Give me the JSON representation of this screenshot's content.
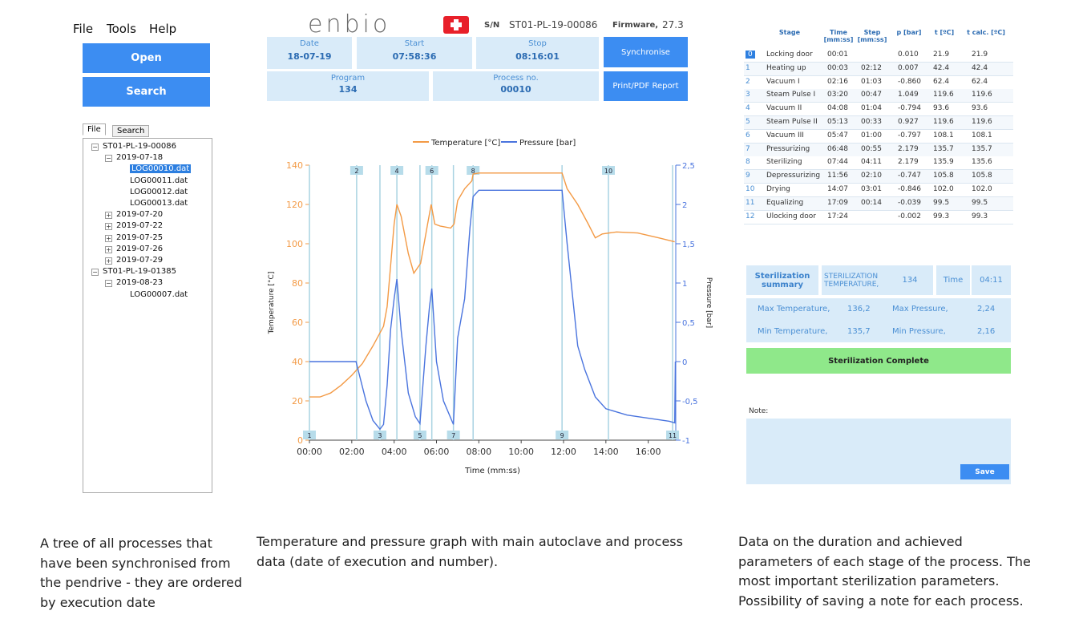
{
  "menu": {
    "items": [
      "File",
      "Tools",
      "Help"
    ]
  },
  "left_buttons": [
    "Open",
    "Search"
  ],
  "tabs": [
    "File",
    "Search"
  ],
  "tree": [
    {
      "label": "ST01-PL-19-00086",
      "children": [
        {
          "label": "2019-07-18",
          "children": [
            {
              "label": "LOG00010.dat",
              "selected": true
            },
            {
              "label": "LOG00011.dat"
            },
            {
              "label": "LOG00012.dat"
            },
            {
              "label": "LOG00013.dat"
            }
          ]
        },
        {
          "label": "2019-07-20",
          "children": []
        },
        {
          "label": "2019-07-22",
          "children": []
        },
        {
          "label": "2019-07-25",
          "children": []
        },
        {
          "label": "2019-07-26",
          "children": []
        },
        {
          "label": "2019-07-29",
          "children": []
        }
      ]
    },
    {
      "label": "ST01-PL-19-01385",
      "children": [
        {
          "label": "2019-08-23",
          "children": [
            {
              "label": "LOG00007.dat"
            }
          ]
        }
      ]
    }
  ],
  "header": {
    "logo": "enbio",
    "sn_label": "S/N",
    "sn": "ST01-PL-19-00086",
    "firmware_label": "Firmware,",
    "firmware": "27.3",
    "date_label": "Date",
    "date": "18-07-19",
    "start_label": "Start",
    "start": "07:58:36",
    "stop_label": "Stop",
    "stop": "08:16:01",
    "program_label": "Program",
    "program": "134",
    "process_label": "Process no.",
    "process": "00010",
    "sync_button": "Synchronise",
    "print_button": "Print/PDF Report"
  },
  "table": {
    "columns": [
      "Stage",
      "Time [mm:ss]",
      "Step [mm:ss]",
      "p [bar]",
      "t [ºC]",
      "t calc. [ºC]"
    ],
    "rows": [
      [
        "0",
        "Locking door",
        "00:01",
        null,
        "0.010",
        "21.9",
        "21.9"
      ],
      [
        "1",
        "Heating up",
        "00:03",
        "02:12",
        "0.007",
        "42.4",
        "42.4"
      ],
      [
        "2",
        "Vacuum I",
        "02:16",
        "01:03",
        "-0.860",
        "62.4",
        "62.4"
      ],
      [
        "3",
        "Steam Pulse I",
        "03:20",
        "00:47",
        "1.049",
        "119.6",
        "119.6"
      ],
      [
        "4",
        "Vacuum II",
        "04:08",
        "01:04",
        "-0.794",
        "93.6",
        "93.6"
      ],
      [
        "5",
        "Steam Pulse II",
        "05:13",
        "00:33",
        "0.927",
        "119.6",
        "119.6"
      ],
      [
        "6",
        "Vacuum III",
        "05:47",
        "01:00",
        "-0.797",
        "108.1",
        "108.1"
      ],
      [
        "7",
        "Pressurizing",
        "06:48",
        "00:55",
        "2.179",
        "135.7",
        "135.7"
      ],
      [
        "8",
        "Sterilizing",
        "07:44",
        "04:11",
        "2.179",
        "135.9",
        "135.6"
      ],
      [
        "9",
        "Depressurizing",
        "11:56",
        "02:10",
        "-0.747",
        "105.8",
        "105.8"
      ],
      [
        "10",
        "Drying",
        "14:07",
        "03:01",
        "-0.846",
        "102.0",
        "102.0"
      ],
      [
        "11",
        "Equalizing",
        "17:09",
        "00:14",
        "-0.039",
        "99.5",
        "99.5"
      ],
      [
        "12",
        "Ulocking door",
        "17:24",
        null,
        "-0.002",
        "99.3",
        "99.3"
      ]
    ]
  },
  "summary": {
    "title": "Sterilization summary",
    "temp_label": "STERILIZATION TEMPERATURE,",
    "temp": "134",
    "time_label": "Time",
    "time": "04:11",
    "max_temp_label": "Max Temperature,",
    "max_temp": "136,2",
    "max_p_label": "Max Pressure,",
    "max_p": "2,24",
    "min_temp_label": "Min Temperature,",
    "min_temp": "135,7",
    "min_p_label": "Min Pressure,",
    "min_p": "2,16",
    "status": "Sterilization Complete"
  },
  "note": {
    "label": "Note:",
    "save": "Save"
  },
  "captions": [
    "A tree of all processes that have been synchronised from the pendrive - they are ordered by execution date",
    "Temperature and pressure graph with main autoclave and process data (date of execution and number).",
    "Data on the duration and achieved parameters of each stage of the process. The most important sterilization parameters. Possibility of saving a note for each process."
  ],
  "chart_data": {
    "type": "line",
    "x_label": "Time (mm:ss)",
    "y_label": "Temperature [°C]",
    "y2_label": "Pressure [bar]",
    "xlim": [
      0,
      17.3
    ],
    "xticks": [
      {
        "value": 0,
        "label": "00:00"
      },
      {
        "value": 2,
        "label": "02:00"
      },
      {
        "value": 4,
        "label": "04:00"
      },
      {
        "value": 6,
        "label": "06:00"
      },
      {
        "value": 8,
        "label": "08:00"
      },
      {
        "value": 10,
        "label": "10:00"
      },
      {
        "value": 12,
        "label": "12:00"
      },
      {
        "value": 14,
        "label": "14:00"
      },
      {
        "value": 16,
        "label": "16:00"
      }
    ],
    "ylim": [
      0,
      140
    ],
    "yticks": [
      0,
      20,
      40,
      60,
      80,
      100,
      120,
      140
    ],
    "y2lim": [
      -1,
      2.5
    ],
    "y2ticks": [
      {
        "value": 2.5,
        "label": "2,5"
      },
      {
        "value": 2,
        "label": "2"
      },
      {
        "value": 1.5,
        "label": "1,5"
      },
      {
        "value": 1,
        "label": "1"
      },
      {
        "value": 0.5,
        "label": "0,5"
      },
      {
        "value": 0,
        "label": "0"
      },
      {
        "value": -0.5,
        "label": "-0,5"
      },
      {
        "value": -1,
        "label": "-1"
      }
    ],
    "grid": false,
    "series": [
      {
        "name": "Temperature [°C]",
        "color": "#f39a45",
        "x": [
          0,
          0.5,
          1,
          1.5,
          2,
          2.5,
          3,
          3.5,
          3.67,
          4,
          4.13,
          4.33,
          4.67,
          4.93,
          5.25,
          5.58,
          5.75,
          5.92,
          6.17,
          6.67,
          6.83,
          7,
          7.33,
          7.67,
          7.73,
          8,
          9,
          11,
          11.93,
          12.17,
          12.67,
          13.17,
          13.5,
          13.83,
          14.5,
          15.5,
          16.5,
          17.25
        ],
        "values": [
          22,
          22,
          24,
          28,
          33,
          39,
          48,
          58,
          68,
          110,
          120,
          114,
          95,
          85,
          90,
          110,
          120,
          110,
          109,
          108,
          110,
          122,
          128,
          132,
          135.5,
          136,
          136,
          136,
          136,
          128,
          120,
          110,
          103,
          105,
          106,
          105.5,
          103,
          101
        ]
      },
      {
        "name": "Pressure [bar]",
        "color": "#4a74de",
        "axis": "y2",
        "x": [
          0,
          1,
          2.2,
          2.67,
          3,
          3.33,
          3.5,
          3.67,
          3.83,
          4,
          4.13,
          4.33,
          4.67,
          5,
          5.22,
          5.5,
          5.67,
          5.78,
          6,
          6.33,
          6.8,
          7,
          7.33,
          7.58,
          7.73,
          8,
          10,
          11.93,
          12.17,
          12.67,
          13,
          13.5,
          14,
          15,
          16,
          17,
          17.25,
          17.28
        ],
        "values": [
          0,
          0,
          0,
          -0.5,
          -0.75,
          -0.86,
          -0.8,
          -0.3,
          0.4,
          0.8,
          1.05,
          0.4,
          -0.4,
          -0.7,
          -0.79,
          0.2,
          0.7,
          0.93,
          0,
          -0.5,
          -0.8,
          0.3,
          0.8,
          1.7,
          2.1,
          2.18,
          2.18,
          2.18,
          1.5,
          0.2,
          -0.1,
          -0.45,
          -0.6,
          -0.68,
          -0.72,
          -0.76,
          -0.78,
          0
        ]
      }
    ],
    "markers": [
      {
        "label": "1",
        "x": 0
      },
      {
        "label": "2",
        "x": 2.23
      },
      {
        "label": "3",
        "x": 3.33
      },
      {
        "label": "4",
        "x": 4.13
      },
      {
        "label": "5",
        "x": 5.22
      },
      {
        "label": "6",
        "x": 5.78
      },
      {
        "label": "7",
        "x": 6.8
      },
      {
        "label": "8",
        "x": 7.73
      },
      {
        "label": "9",
        "x": 11.93
      },
      {
        "label": "10",
        "x": 14.12
      },
      {
        "label": "11",
        "x": 17.15
      }
    ]
  }
}
